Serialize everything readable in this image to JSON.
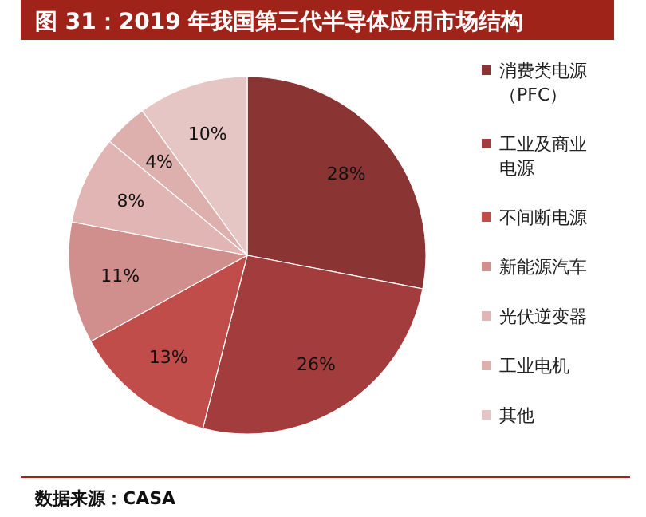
{
  "chart_data": {
    "type": "pie",
    "title": "图 31：2019 年我国第三代半导体应用市场结构",
    "categories": [
      "消费类电源（PFC）",
      "工业及商业电源",
      "不间断电源",
      "新能源汽车",
      "光伏逆变器",
      "工业电机",
      "其他"
    ],
    "values": [
      28,
      26,
      13,
      11,
      8,
      4,
      10
    ],
    "value_labels": [
      "28%",
      "26%",
      "13%",
      "11%",
      "8%",
      "4%",
      "10%"
    ],
    "colors": [
      "#8b3434",
      "#a33d3d",
      "#c04d4a",
      "#d08e8c",
      "#e0b5b3",
      "#ddb0ae",
      "#e6c6c5"
    ],
    "legend": "right",
    "annotations": [
      "数据来源：CASA"
    ]
  }
}
